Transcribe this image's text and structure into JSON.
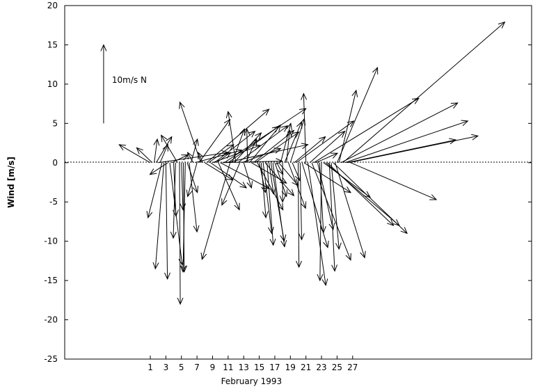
{
  "chart_data": {
    "type": "vector",
    "xlabel": "February 1993",
    "ylabel": "Wind [m/s]",
    "x_ticks": [
      1,
      3,
      5,
      7,
      9,
      11,
      13,
      15,
      17,
      19,
      21,
      23,
      25,
      27
    ],
    "x_tick_labels": [
      "1",
      "3",
      "5",
      "7",
      "9",
      "11",
      "13",
      "15",
      "17",
      "19",
      "21",
      "23",
      "25",
      "27"
    ],
    "xlim": [
      -10,
      50
    ],
    "ylim": [
      -25,
      20
    ],
    "y_ticks": [
      -25,
      -20,
      -15,
      -10,
      -5,
      0,
      5,
      10,
      15,
      20
    ],
    "y_tick_labels": [
      "-25",
      "-20",
      "-15",
      "-10",
      "-5",
      "0",
      "5",
      "10",
      "15",
      "20"
    ],
    "zero_line": "dashed",
    "scale_arrow": {
      "label": "10m/s N",
      "x": -5,
      "y": 5,
      "u": 0,
      "v": 10
    },
    "vectors": [
      {
        "x": 1.0,
        "u": -4.0,
        "v": 2.3
      },
      {
        "x": 1.25,
        "u": -2.0,
        "v": 1.9
      },
      {
        "x": 1.5,
        "u": 0.4,
        "v": 3.0
      },
      {
        "x": 1.75,
        "u": 2.0,
        "v": 3.3
      },
      {
        "x": 2.0,
        "u": 9.0,
        "v": 1.3
      },
      {
        "x": 2.25,
        "u": 1.0,
        "v": 2.3
      },
      {
        "x": 2.5,
        "u": -1.8,
        "v": -7.0
      },
      {
        "x": 2.75,
        "u": -1.1,
        "v": -13.5
      },
      {
        "x": 3.0,
        "u": 0.2,
        "v": -14.8
      },
      {
        "x": 3.25,
        "u": -2.3,
        "v": -1.5
      },
      {
        "x": 3.5,
        "u": 1.6,
        "v": -13.0
      },
      {
        "x": 3.75,
        "u": 2.1,
        "v": 1.0
      },
      {
        "x": 4.0,
        "u": 0.3,
        "v": -6.8
      },
      {
        "x": 4.25,
        "u": -0.3,
        "v": -9.6
      },
      {
        "x": 4.5,
        "u": -2.1,
        "v": 3.5
      },
      {
        "x": 4.75,
        "u": 0.1,
        "v": -18.0
      },
      {
        "x": 5.0,
        "u": 0.2,
        "v": -6.0
      },
      {
        "x": 5.25,
        "u": 0.1,
        "v": -13.9
      },
      {
        "x": 5.5,
        "u": -0.3,
        "v": -13.9
      },
      {
        "x": 5.75,
        "u": 1.3,
        "v": -3.8
      },
      {
        "x": 6.0,
        "u": 1.0,
        "v": -8.8
      },
      {
        "x": 6.25,
        "u": 0.8,
        "v": 3.0
      },
      {
        "x": 6.5,
        "u": -0.7,
        "v": 1.3
      },
      {
        "x": 6.75,
        "u": 6.0,
        "v": 1.6
      },
      {
        "x": 7.0,
        "u": -1.2,
        "v": -4.3
      },
      {
        "x": 7.25,
        "u": 4.0,
        "v": 5.5
      },
      {
        "x": 7.5,
        "u": -2.7,
        "v": 7.7
      },
      {
        "x": 7.75,
        "u": -0.6,
        "v": 1.3
      },
      {
        "x": 8.0,
        "u": 3.6,
        "v": -2.2
      },
      {
        "x": 8.25,
        "u": 8.0,
        "v": 6.8
      },
      {
        "x": 8.5,
        "u": 3.2,
        "v": 2.3
      },
      {
        "x": 8.75,
        "u": 4.6,
        "v": -3.2
      },
      {
        "x": 9.0,
        "u": 6.1,
        "v": 2.2
      },
      {
        "x": 9.25,
        "u": 5.2,
        "v": 4.0
      },
      {
        "x": 9.5,
        "u": 1.8,
        "v": 1.3
      },
      {
        "x": 9.75,
        "u": 2.7,
        "v": -6.0
      },
      {
        "x": 10.0,
        "u": 6.3,
        "v": -3.3
      },
      {
        "x": 10.25,
        "u": 7.7,
        "v": 0.2
      },
      {
        "x": 10.5,
        "u": 10.5,
        "v": 6.9
      },
      {
        "x": 10.75,
        "u": 10.5,
        "v": 2.3
      },
      {
        "x": 11.0,
        "u": 6.5,
        "v": 4.6
      },
      {
        "x": 11.25,
        "u": -3.6,
        "v": -12.3
      },
      {
        "x": 11.5,
        "u": 1.6,
        "v": 4.3
      },
      {
        "x": 11.75,
        "u": 3.5,
        "v": 3.8
      },
      {
        "x": 12.0,
        "u": -1.0,
        "v": 6.5
      },
      {
        "x": 12.25,
        "u": 6.4,
        "v": 4.7
      },
      {
        "x": 12.5,
        "u": -2.3,
        "v": -5.4
      },
      {
        "x": 12.75,
        "u": 5.0,
        "v": 1.8
      },
      {
        "x": 13.0,
        "u": 1.0,
        "v": -3.2
      },
      {
        "x": 13.25,
        "u": 1.4,
        "v": 3.0
      },
      {
        "x": 13.5,
        "u": -0.1,
        "v": 4.3
      },
      {
        "x": 13.75,
        "u": 4.0,
        "v": 4.8
      },
      {
        "x": 14.0,
        "u": 4.5,
        "v": -2.6
      },
      {
        "x": 14.25,
        "u": 5.2,
        "v": 4.1
      },
      {
        "x": 14.5,
        "u": 5.6,
        "v": 3.9
      },
      {
        "x": 14.75,
        "u": 3.3,
        "v": -6.0
      },
      {
        "x": 15.0,
        "u": 0.8,
        "v": -3.8
      },
      {
        "x": 15.25,
        "u": 0.6,
        "v": -7.0
      },
      {
        "x": 15.5,
        "u": 1.1,
        "v": -9.0
      },
      {
        "x": 15.75,
        "u": 3.7,
        "v": -4.2
      },
      {
        "x": 16.0,
        "u": 0.8,
        "v": -10.5
      },
      {
        "x": 16.25,
        "u": 0.6,
        "v": -4.0
      },
      {
        "x": 16.5,
        "u": 1.7,
        "v": -10.0
      },
      {
        "x": 16.75,
        "u": 1.5,
        "v": -10.7
      },
      {
        "x": 17.0,
        "u": 1.5,
        "v": -4.3
      },
      {
        "x": 17.25,
        "u": 0.8,
        "v": -1.5
      },
      {
        "x": 17.5,
        "u": 2.5,
        "v": -2.9
      },
      {
        "x": 17.75,
        "u": 1.3,
        "v": 5.0
      },
      {
        "x": 18.0,
        "u": 0.0,
        "v": -5.0
      },
      {
        "x": 18.25,
        "u": 2.2,
        "v": 5.2
      },
      {
        "x": 18.5,
        "u": 0.4,
        "v": 4.1
      },
      {
        "x": 18.75,
        "u": 2.2,
        "v": -5.8
      },
      {
        "x": 19.0,
        "u": 1.8,
        "v": 5.6
      },
      {
        "x": 19.25,
        "u": 1.0,
        "v": -2.3
      },
      {
        "x": 19.5,
        "u": 4.0,
        "v": 3.3
      },
      {
        "x": 19.75,
        "u": 7.4,
        "v": 5.3
      },
      {
        "x": 20.0,
        "u": 0.1,
        "v": -13.3
      },
      {
        "x": 20.25,
        "u": 0.2,
        "v": -9.8
      },
      {
        "x": 20.5,
        "u": 3.3,
        "v": -10.8
      },
      {
        "x": 20.75,
        "u": 6.0,
        "v": -3.8
      },
      {
        "x": 21.0,
        "u": -0.3,
        "v": 8.8
      },
      {
        "x": 21.25,
        "u": 2.3,
        "v": -15.6
      },
      {
        "x": 21.5,
        "u": 4.5,
        "v": 4.0
      },
      {
        "x": 21.75,
        "u": 5.0,
        "v": -12.4
      },
      {
        "x": 22.0,
        "u": 13.5,
        "v": 8.2
      },
      {
        "x": 22.25,
        "u": 2.8,
        "v": 1.2
      },
      {
        "x": 22.5,
        "u": 2.0,
        "v": -8.5
      },
      {
        "x": 22.75,
        "u": 0.5,
        "v": -8.9
      },
      {
        "x": 23.0,
        "u": -0.2,
        "v": -15.0
      },
      {
        "x": 23.25,
        "u": 6.0,
        "v": -4.4
      },
      {
        "x": 23.5,
        "u": 9.5,
        "v": -8.0
      },
      {
        "x": 23.75,
        "u": 8.5,
        "v": -8.0
      },
      {
        "x": 24.0,
        "u": 0.7,
        "v": -13.8
      },
      {
        "x": 24.25,
        "u": 1.0,
        "v": -11.0
      },
      {
        "x": 24.5,
        "u": 9.5,
        "v": -9.0
      },
      {
        "x": 24.75,
        "u": 3.8,
        "v": -12.1
      },
      {
        "x": 25.0,
        "u": 5.2,
        "v": 12.1
      },
      {
        "x": 25.25,
        "u": 2.2,
        "v": 9.2
      },
      {
        "x": 25.5,
        "u": 15.0,
        "v": 7.6
      },
      {
        "x": 25.75,
        "u": 20.8,
        "v": 17.9
      },
      {
        "x": 26.0,
        "u": 15.8,
        "v": 5.3
      },
      {
        "x": 26.25,
        "u": 14.0,
        "v": 2.9
      },
      {
        "x": 26.5,
        "u": 16.6,
        "v": 3.4
      },
      {
        "x": 26.75,
        "u": 11.0,
        "v": -4.7
      }
    ]
  }
}
